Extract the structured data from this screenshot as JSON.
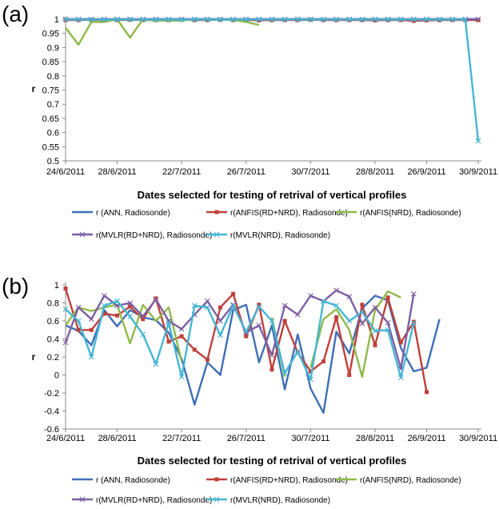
{
  "colors": {
    "ANN": "#3f6fb5",
    "ANFIS_RD_NRD": "#c0403c",
    "ANFIS_NRD": "#8fb94a",
    "MVLR_RD_NRD": "#7d5fa4",
    "MVLR_NRD": "#45b6d3"
  },
  "chart_data": [
    {
      "panel_label": "(a)",
      "type": "line",
      "ylabel": "r",
      "xlabel": "Dates selected for testing of retrival of vertical profiles",
      "ylim": [
        0.5,
        1
      ],
      "yticks": [
        "0.5",
        "0.55",
        "0.6",
        "0.65",
        "0.7",
        "0.75",
        "0.8",
        "0.85",
        "0.9",
        "0.95",
        "1"
      ],
      "xtick_labels": [
        "24/6/2011",
        "28/6/2011",
        "22/7/2011",
        "26/7/2011",
        "30/7/2011",
        "28/8/2011",
        "26/9/2011",
        "30/9/2011"
      ],
      "x_count": 33,
      "grid": false,
      "legend_position": "bottom",
      "series": [
        {
          "name": "r (ANN, Radiosonde)",
          "color_key": "ANN",
          "values": [
            1,
            1,
            1,
            1,
            1,
            1,
            1,
            1,
            1,
            1,
            1,
            1,
            1,
            1,
            1,
            1,
            1,
            1,
            1,
            1,
            1,
            1,
            1,
            1,
            1,
            1,
            1,
            1,
            1,
            1,
            1,
            1,
            1
          ]
        },
        {
          "name": "r(ANFIS(RD+NRD), Radiosonde)",
          "color_key": "ANFIS_RD_NRD",
          "values": [
            0.997,
            0.997,
            0.998,
            0.997,
            0.997,
            0.998,
            0.997,
            0.997,
            0.997,
            0.998,
            0.997,
            0.997,
            0.998,
            0.997,
            0.997,
            0.996,
            0.997,
            0.997,
            0.997,
            0.998,
            0.997,
            0.997,
            0.997,
            0.997,
            0.996,
            0.997,
            0.997,
            0.994,
            0.996,
            0.997,
            0.997,
            0.997,
            0.997
          ]
        },
        {
          "name": "r(ANFIS(NRD), Radiosonde)",
          "color_key": "ANFIS_NRD",
          "values": [
            0.97,
            0.91,
            0.99,
            0.99,
            1,
            0.935,
            1,
            0.995,
            0.995,
            0.995,
            1,
            0.998,
            0.998,
            0.997,
            0.99,
            0.98,
            null,
            null,
            null,
            null,
            null,
            null,
            null,
            null,
            null,
            null,
            null,
            null,
            null,
            null,
            null,
            null,
            null
          ]
        },
        {
          "name": "r(MVLR(RD+NRD), Radiosonde)",
          "color_key": "MVLR_RD_NRD",
          "values": [
            1,
            1,
            1,
            1,
            1,
            1,
            1,
            1,
            1,
            1,
            1,
            1,
            1,
            1,
            1,
            1,
            1,
            1,
            1,
            1,
            1,
            1,
            1,
            1,
            1,
            1,
            1,
            1,
            1,
            1,
            1,
            1,
            1
          ]
        },
        {
          "name": "r(MVLR(NRD), Radiosonde)",
          "color_key": "MVLR_NRD",
          "values": [
            0.999,
            0.999,
            0.999,
            0.999,
            0.999,
            0.999,
            0.999,
            0.999,
            0.999,
            0.999,
            0.999,
            0.999,
            0.999,
            0.999,
            0.999,
            0.999,
            0.999,
            0.999,
            0.999,
            0.999,
            0.999,
            0.999,
            0.999,
            0.999,
            0.999,
            0.999,
            0.999,
            0.999,
            0.999,
            0.999,
            0.999,
            0.999,
            0.57
          ]
        }
      ]
    },
    {
      "panel_label": "(b)",
      "type": "line",
      "ylabel": "r",
      "xlabel": "Dates selected for testing of retrival of vertical profiles",
      "ylim": [
        -0.6,
        1
      ],
      "yticks": [
        "-0.6",
        "-0.4",
        "-0.2",
        "0",
        "0.2",
        "0.4",
        "0.6",
        "0.8",
        "1"
      ],
      "xtick_labels": [
        "24/6/2011",
        "28/6/2011",
        "22/7/2011",
        "26/7/2011",
        "30/7/2011",
        "28/8/2011",
        "26/9/2011",
        "30/9/2011"
      ],
      "x_count": 33,
      "grid": false,
      "legend_position": "bottom",
      "series": [
        {
          "name": "r (ANN, Radiosonde)",
          "color_key": "ANN",
          "values": [
            0.55,
            0.49,
            0.33,
            0.72,
            0.54,
            0.72,
            0.64,
            0.61,
            0.47,
            0.18,
            -0.33,
            0.14,
            0.0,
            0.72,
            0.78,
            0.14,
            0.55,
            -0.16,
            0.45,
            -0.15,
            -0.42,
            0.48,
            0.24,
            0.74,
            0.88,
            0.83,
            0.3,
            0.04,
            0.08,
            0.62,
            null,
            null,
            null
          ]
        },
        {
          "name": "r(ANFIS(RD+NRD), Radiosonde)",
          "color_key": "ANFIS_RD_NRD",
          "values": [
            0.96,
            0.5,
            0.5,
            0.68,
            0.66,
            0.76,
            0.62,
            0.85,
            0.37,
            0.43,
            0.28,
            0.17,
            0.75,
            0.9,
            0.43,
            0.78,
            0.06,
            0.6,
            0.25,
            0.04,
            0.15,
            0.64,
            0.0,
            0.78,
            0.33,
            0.86,
            0.36,
            0.59,
            -0.19,
            null,
            null,
            null,
            null
          ]
        },
        {
          "name": "r(ANFIS(NRD), Radiosonde)",
          "color_key": "ANFIS_NRD",
          "values": [
            0.55,
            0.75,
            0.71,
            0.75,
            0.78,
            0.35,
            0.78,
            0.6,
            0.75,
            0.15,
            null,
            null,
            null,
            null,
            null,
            null,
            0.64,
            -0.02,
            null,
            0.08,
            0.62,
            0.73,
            0.5,
            -0.02,
            0.72,
            0.93,
            0.86,
            null,
            null,
            null,
            null,
            null,
            null
          ]
        },
        {
          "name": "r(MVLR(RD+NRD), Radiosonde)",
          "color_key": "MVLR_RD_NRD",
          "values": [
            0.36,
            0.75,
            0.62,
            0.88,
            0.77,
            0.8,
            0.65,
            0.84,
            0.6,
            0.51,
            0.67,
            0.82,
            0.6,
            0.78,
            0.47,
            0.55,
            0.22,
            0.77,
            0.67,
            0.88,
            0.82,
            0.94,
            0.87,
            0.57,
            0.75,
            0.58,
            0.07,
            0.9,
            null,
            null,
            null,
            null,
            null
          ]
        },
        {
          "name": "r(MVLR(NRD), Radiosonde)",
          "color_key": "MVLR_NRD",
          "values": [
            0.73,
            0.6,
            0.2,
            0.77,
            0.82,
            0.65,
            0.45,
            0.12,
            0.58,
            -0.02,
            0.77,
            0.75,
            0.44,
            0.77,
            0.48,
            0.76,
            0.6,
            0.02,
            0.26,
            -0.05,
            0.82,
            0.77,
            0.6,
            0.7,
            0.49,
            0.5,
            -0.03,
            0.58,
            null,
            null,
            null,
            null,
            null
          ]
        }
      ]
    }
  ]
}
